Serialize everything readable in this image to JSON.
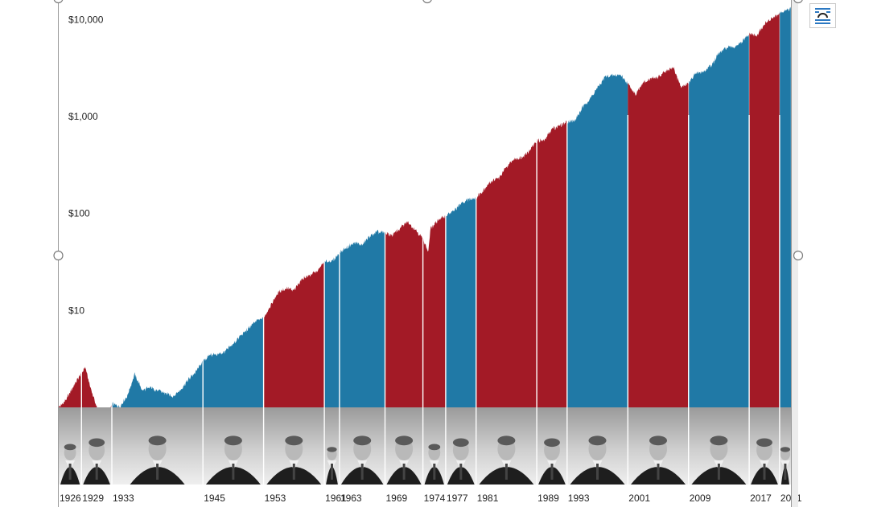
{
  "chart_data": {
    "type": "area",
    "scale": "log",
    "ylim": [
      1,
      15000
    ],
    "xlim": [
      1926,
      2022.5
    ],
    "y_ticks": [
      {
        "value": 10,
        "label": "$10"
      },
      {
        "value": 100,
        "label": "$100"
      },
      {
        "value": 1000,
        "label": "$1,000"
      },
      {
        "value": 10000,
        "label": "$10,000"
      }
    ],
    "terms": [
      {
        "start": 1926,
        "end": 1929,
        "label": "1926",
        "party": "R"
      },
      {
        "start": 1929,
        "end": 1933,
        "label": "1929",
        "party": "R"
      },
      {
        "start": 1933,
        "end": 1945,
        "label": "1933",
        "party": "D"
      },
      {
        "start": 1945,
        "end": 1953,
        "label": "1945",
        "party": "D"
      },
      {
        "start": 1953,
        "end": 1961,
        "label": "1953",
        "party": "R"
      },
      {
        "start": 1961,
        "end": 1963,
        "label": "1961",
        "party": "D"
      },
      {
        "start": 1963,
        "end": 1969,
        "label": "1963",
        "party": "D"
      },
      {
        "start": 1969,
        "end": 1974,
        "label": "1969",
        "party": "R"
      },
      {
        "start": 1974,
        "end": 1977,
        "label": "1974",
        "party": "R"
      },
      {
        "start": 1977,
        "end": 1981,
        "label": "1977",
        "party": "D"
      },
      {
        "start": 1981,
        "end": 1989,
        "label": "1981",
        "party": "R"
      },
      {
        "start": 1989,
        "end": 1993,
        "label": "1989",
        "party": "R"
      },
      {
        "start": 1993,
        "end": 2001,
        "label": "1993",
        "party": "D"
      },
      {
        "start": 2001,
        "end": 2009,
        "label": "2001",
        "party": "R"
      },
      {
        "start": 2009,
        "end": 2017,
        "label": "2009",
        "party": "D"
      },
      {
        "start": 2017,
        "end": 2021,
        "label": "2017",
        "party": "R"
      },
      {
        "start": 2021,
        "end": 2022.5,
        "label": "2021",
        "party": "D"
      }
    ],
    "series": [
      {
        "x": [
          1926,
          1927,
          1928,
          1929.5,
          1930,
          1931,
          1932,
          1932.5,
          1933,
          1934,
          1935,
          1936,
          1937,
          1938,
          1939,
          1940,
          1941,
          1942,
          1943,
          1944,
          1945,
          1946,
          1947,
          1948,
          1949,
          1950,
          1951,
          1952,
          1953,
          1954,
          1955,
          1956,
          1957,
          1958,
          1959,
          1960,
          1961,
          1962,
          1963,
          1964,
          1965,
          1966,
          1967,
          1968,
          1969,
          1970,
          1971,
          1972,
          1973,
          1974,
          1974.7,
          1975,
          1976,
          1977,
          1978,
          1979,
          1980,
          1981,
          1982,
          1983,
          1984,
          1985,
          1986,
          1987,
          1988,
          1989,
          1990,
          1991,
          1992,
          1993,
          1994,
          1995,
          1996,
          1997,
          1998,
          1999,
          2000,
          2001,
          2002,
          2003,
          2004,
          2005,
          2006,
          2007,
          2008,
          2009,
          2010,
          2011,
          2012,
          2013,
          2014,
          2015,
          2016,
          2017,
          2018,
          2019,
          2020,
          2021,
          2022.5
        ],
        "values": [
          1.0,
          1.2,
          1.7,
          2.6,
          1.8,
          1.0,
          0.75,
          0.6,
          1.1,
          1.0,
          1.3,
          2.2,
          1.5,
          1.6,
          1.5,
          1.4,
          1.3,
          1.5,
          1.9,
          2.3,
          3.0,
          3.5,
          3.5,
          3.8,
          4.5,
          5.5,
          6.5,
          7.8,
          8.4,
          11.5,
          15.5,
          17.0,
          16.0,
          21.0,
          23.0,
          25.0,
          32.0,
          32.0,
          39.0,
          45.0,
          50.0,
          47.0,
          58.0,
          65.0,
          62.0,
          60.0,
          70.0,
          82.0,
          68.0,
          55.0,
          40.0,
          70.0,
          85.0,
          95.0,
          105.0,
          125.0,
          140.0,
          145.0,
          175.0,
          215.0,
          230.0,
          300.0,
          360.0,
          380.0,
          440.0,
          570.0,
          560.0,
          750.0,
          800.0,
          890.0,
          900.0,
          1230.0,
          1500.0,
          1980.0,
          2550.0,
          2650.0,
          2700.0,
          2200.0,
          1700.0,
          2200.0,
          2450.0,
          2550.0,
          2900.0,
          3200.0,
          2000.0,
          2200.0,
          2800.0,
          2900.0,
          3350.0,
          4450.0,
          5100.0,
          5200.0,
          5800.0,
          7100.0,
          6800.0,
          8900.0,
          10400.0,
          11500.0,
          13000.0
        ]
      }
    ],
    "colors": {
      "R": "#a31a26",
      "D": "#2079a6"
    }
  }
}
